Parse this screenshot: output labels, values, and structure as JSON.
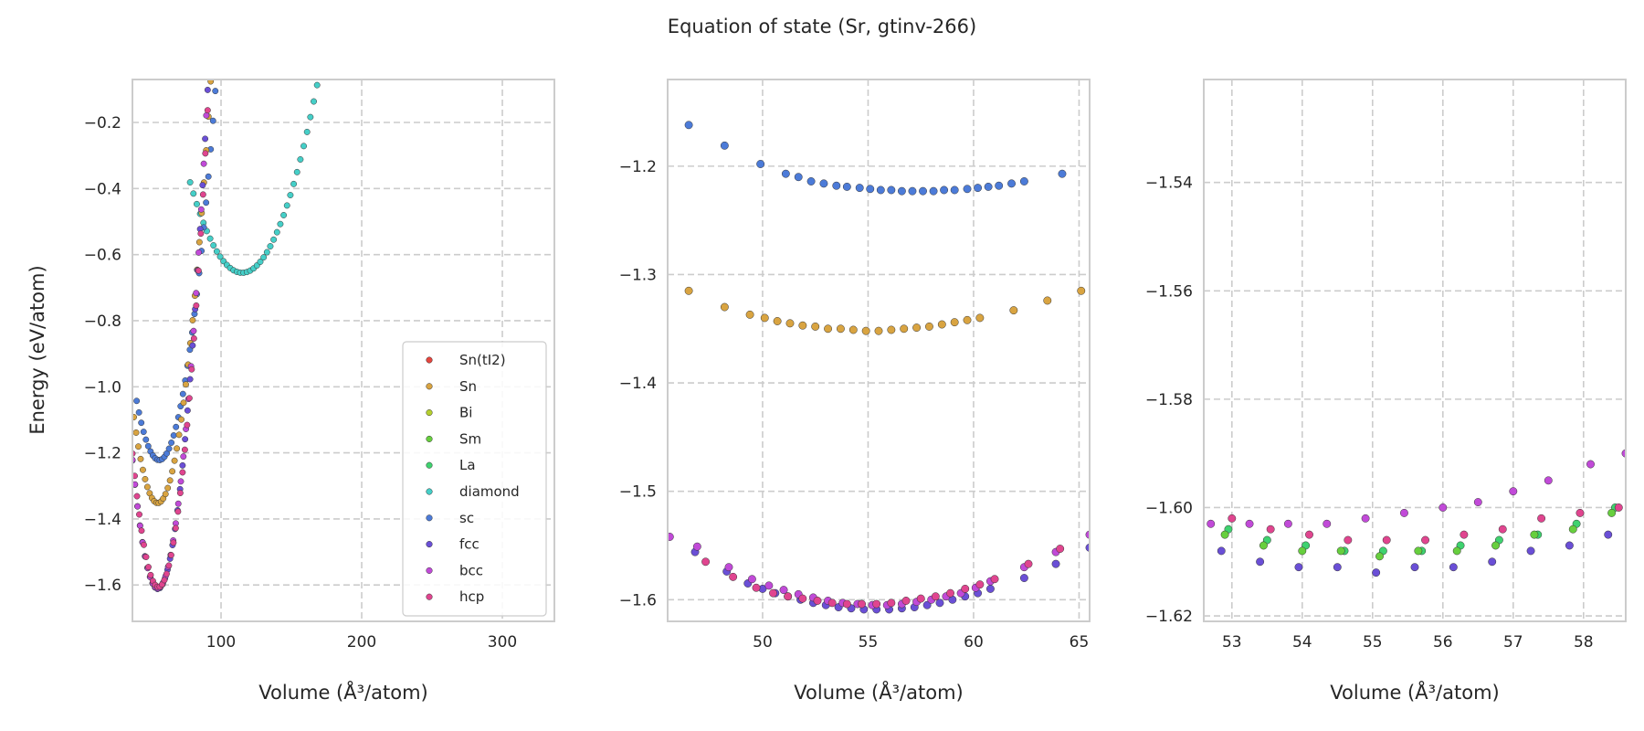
{
  "figure": {
    "title": "Equation of state (Sr, gtinv-266)",
    "ylabel": "Energy (eV/atom)"
  },
  "legend": {
    "placement": "lower-right of first panel",
    "entries": [
      {
        "name": "Sn(tI2)",
        "color": "#e5463f"
      },
      {
        "name": "Sn",
        "color": "#d9a441"
      },
      {
        "name": "Bi",
        "color": "#b5cf2e"
      },
      {
        "name": "Sm",
        "color": "#67cf3e"
      },
      {
        "name": "La",
        "color": "#3fd26f"
      },
      {
        "name": "diamond",
        "color": "#45cfc8"
      },
      {
        "name": "sc",
        "color": "#4c7bd8"
      },
      {
        "name": "fcc",
        "color": "#6a4fd6"
      },
      {
        "name": "bcc",
        "color": "#c14ad8"
      },
      {
        "name": "hcp",
        "color": "#e0458f"
      }
    ]
  },
  "chart_data": [
    {
      "type": "scatter",
      "xlabel": "Volume (Å³/atom)",
      "ylabel": "Energy (eV/atom)",
      "xlim": [
        37,
        337
      ],
      "ylim": [
        -1.71,
        -0.07
      ],
      "xticks": [
        100,
        200,
        300
      ],
      "yticks": [
        -1.6,
        -1.4,
        -1.2,
        -1.0,
        -0.8,
        -0.6,
        -0.4,
        -0.2
      ],
      "xtick_labels": [
        "100",
        "200",
        "300"
      ],
      "ytick_labels": [
        "−1.6",
        "−1.4",
        "−1.2",
        "−1.0",
        "−0.8",
        "−0.6",
        "−0.4",
        "−0.2"
      ],
      "grid": true,
      "series": [
        {
          "name": "diamond",
          "color": "#45cfc8",
          "eos": {
            "E0": -0.655,
            "V0": 115,
            "B": 0.0002,
            "vmin": 78,
            "vmax": 337,
            "n": 110
          }
        },
        {
          "name": "sc",
          "color": "#4c7bd8",
          "eos": {
            "E0": -1.222,
            "V0": 56,
            "B": 0.0007,
            "vmin": 40,
            "vmax": 170,
            "n": 80
          }
        },
        {
          "name": "Sn",
          "color": "#d9a441",
          "eos": {
            "E0": -1.352,
            "V0": 55,
            "B": 0.0009,
            "vmin": 38,
            "vmax": 165,
            "n": 80
          }
        },
        {
          "name": "fcc",
          "color": "#6a4fd6",
          "eos": {
            "E0": -1.612,
            "V0": 55,
            "B": 0.0012,
            "vmin": 37,
            "vmax": 160,
            "n": 70
          }
        },
        {
          "name": "bcc",
          "color": "#c14ad8",
          "eos": {
            "E0": -1.61,
            "V0": 55,
            "B": 0.0012,
            "vmin": 37,
            "vmax": 162,
            "n": 70
          }
        },
        {
          "name": "hcp",
          "color": "#e0458f",
          "eos": {
            "E0": -1.606,
            "V0": 55.5,
            "B": 0.00118,
            "vmin": 37,
            "vmax": 165,
            "n": 80
          }
        }
      ]
    },
    {
      "type": "scatter",
      "xlabel": "Volume (Å³/atom)",
      "ylabel": "",
      "xlim": [
        45.5,
        65.5
      ],
      "ylim": [
        -1.62,
        -1.12
      ],
      "xticks": [
        50,
        55,
        60,
        65
      ],
      "yticks": [
        -1.6,
        -1.5,
        -1.4,
        -1.3,
        -1.2
      ],
      "xtick_labels": [
        "50",
        "55",
        "60",
        "65"
      ],
      "ytick_labels": [
        "−1.6",
        "−1.5",
        "−1.4",
        "−1.3",
        "−1.2"
      ],
      "grid": true,
      "series": [
        {
          "name": "sc",
          "color": "#4c7bd8",
          "points": [
            [
              46.5,
              -1.162
            ],
            [
              48.2,
              -1.181
            ],
            [
              49.9,
              -1.198
            ],
            [
              51.1,
              -1.207
            ],
            [
              51.7,
              -1.21
            ],
            [
              52.3,
              -1.214
            ],
            [
              52.9,
              -1.216
            ],
            [
              53.5,
              -1.218
            ],
            [
              54.0,
              -1.219
            ],
            [
              54.6,
              -1.22
            ],
            [
              55.1,
              -1.221
            ],
            [
              55.6,
              -1.222
            ],
            [
              56.1,
              -1.222
            ],
            [
              56.6,
              -1.223
            ],
            [
              57.1,
              -1.223
            ],
            [
              57.6,
              -1.223
            ],
            [
              58.1,
              -1.223
            ],
            [
              58.6,
              -1.222
            ],
            [
              59.1,
              -1.222
            ],
            [
              59.7,
              -1.221
            ],
            [
              60.2,
              -1.22
            ],
            [
              60.7,
              -1.219
            ],
            [
              61.2,
              -1.218
            ],
            [
              61.8,
              -1.216
            ],
            [
              62.4,
              -1.214
            ],
            [
              64.2,
              -1.207
            ]
          ]
        },
        {
          "name": "Sn",
          "color": "#d9a441",
          "points": [
            [
              46.5,
              -1.315
            ],
            [
              48.2,
              -1.33
            ],
            [
              49.4,
              -1.337
            ],
            [
              50.1,
              -1.34
            ],
            [
              50.7,
              -1.343
            ],
            [
              51.3,
              -1.345
            ],
            [
              51.9,
              -1.347
            ],
            [
              52.5,
              -1.348
            ],
            [
              53.1,
              -1.35
            ],
            [
              53.7,
              -1.35
            ],
            [
              54.3,
              -1.351
            ],
            [
              54.9,
              -1.352
            ],
            [
              55.5,
              -1.352
            ],
            [
              56.1,
              -1.351
            ],
            [
              56.7,
              -1.35
            ],
            [
              57.3,
              -1.349
            ],
            [
              57.9,
              -1.348
            ],
            [
              58.5,
              -1.346
            ],
            [
              59.1,
              -1.344
            ],
            [
              59.7,
              -1.342
            ],
            [
              60.3,
              -1.34
            ],
            [
              61.9,
              -1.333
            ],
            [
              63.5,
              -1.324
            ],
            [
              65.1,
              -1.315
            ]
          ]
        },
        {
          "name": "fcc",
          "color": "#6a4fd6",
          "points": [
            [
              46.8,
              -1.556
            ],
            [
              48.3,
              -1.574
            ],
            [
              49.3,
              -1.585
            ],
            [
              50.0,
              -1.59
            ],
            [
              50.6,
              -1.594
            ],
            [
              51.2,
              -1.597
            ],
            [
              51.8,
              -1.6
            ],
            [
              52.4,
              -1.603
            ],
            [
              53.0,
              -1.605
            ],
            [
              53.6,
              -1.607
            ],
            [
              54.2,
              -1.608
            ],
            [
              54.8,
              -1.609
            ],
            [
              55.4,
              -1.609
            ],
            [
              56.0,
              -1.609
            ],
            [
              56.6,
              -1.608
            ],
            [
              57.2,
              -1.607
            ],
            [
              57.8,
              -1.605
            ],
            [
              58.4,
              -1.603
            ],
            [
              59.0,
              -1.6
            ],
            [
              59.6,
              -1.597
            ],
            [
              60.2,
              -1.594
            ],
            [
              60.8,
              -1.59
            ],
            [
              62.4,
              -1.58
            ],
            [
              63.9,
              -1.567
            ],
            [
              65.5,
              -1.552
            ]
          ]
        },
        {
          "name": "bcc",
          "color": "#c14ad8",
          "points": [
            [
              45.6,
              -1.542
            ],
            [
              46.9,
              -1.551
            ],
            [
              48.4,
              -1.57
            ],
            [
              49.5,
              -1.581
            ],
            [
              50.3,
              -1.587
            ],
            [
              51.0,
              -1.591
            ],
            [
              51.7,
              -1.595
            ],
            [
              52.4,
              -1.598
            ],
            [
              53.1,
              -1.601
            ],
            [
              53.8,
              -1.603
            ],
            [
              54.5,
              -1.604
            ],
            [
              55.2,
              -1.605
            ],
            [
              55.9,
              -1.605
            ],
            [
              56.6,
              -1.604
            ],
            [
              57.3,
              -1.602
            ],
            [
              58.0,
              -1.6
            ],
            [
              58.7,
              -1.597
            ],
            [
              59.4,
              -1.594
            ],
            [
              60.1,
              -1.589
            ],
            [
              60.8,
              -1.583
            ],
            [
              62.4,
              -1.57
            ],
            [
              63.9,
              -1.556
            ],
            [
              65.5,
              -1.54
            ]
          ]
        },
        {
          "name": "hcp",
          "color": "#e0458f",
          "points": [
            [
              47.3,
              -1.565
            ],
            [
              48.6,
              -1.579
            ],
            [
              49.7,
              -1.589
            ],
            [
              50.5,
              -1.594
            ],
            [
              51.2,
              -1.597
            ],
            [
              51.9,
              -1.599
            ],
            [
              52.6,
              -1.601
            ],
            [
              53.3,
              -1.603
            ],
            [
              54.0,
              -1.604
            ],
            [
              54.7,
              -1.604
            ],
            [
              55.4,
              -1.604
            ],
            [
              56.1,
              -1.603
            ],
            [
              56.8,
              -1.601
            ],
            [
              57.5,
              -1.599
            ],
            [
              58.2,
              -1.597
            ],
            [
              58.9,
              -1.594
            ],
            [
              59.6,
              -1.59
            ],
            [
              60.3,
              -1.586
            ],
            [
              61.0,
              -1.581
            ],
            [
              62.6,
              -1.567
            ],
            [
              64.1,
              -1.553
            ]
          ]
        }
      ]
    },
    {
      "type": "scatter",
      "xlabel": "Volume (Å³/atom)",
      "ylabel": "",
      "xlim": [
        52.6,
        58.6
      ],
      "ylim": [
        -1.621,
        -1.521
      ],
      "xticks": [
        53,
        54,
        55,
        56,
        57,
        58
      ],
      "yticks": [
        -1.62,
        -1.6,
        -1.58,
        -1.56,
        -1.54
      ],
      "xtick_labels": [
        "53",
        "54",
        "55",
        "56",
        "57",
        "58"
      ],
      "ytick_labels": [
        "−1.62",
        "−1.60",
        "−1.58",
        "−1.56",
        "−1.54"
      ],
      "grid": true,
      "series": [
        {
          "name": "fcc",
          "color": "#6a4fd6",
          "points": [
            [
              52.85,
              -1.608
            ],
            [
              53.4,
              -1.61
            ],
            [
              53.95,
              -1.611
            ],
            [
              54.5,
              -1.611
            ],
            [
              55.05,
              -1.612
            ],
            [
              55.6,
              -1.611
            ],
            [
              56.15,
              -1.611
            ],
            [
              56.7,
              -1.61
            ],
            [
              57.25,
              -1.608
            ],
            [
              57.8,
              -1.607
            ],
            [
              58.35,
              -1.605
            ]
          ]
        },
        {
          "name": "La",
          "color": "#3fd26f",
          "points": [
            [
              52.95,
              -1.604
            ],
            [
              53.5,
              -1.606
            ],
            [
              54.05,
              -1.607
            ],
            [
              54.6,
              -1.608
            ],
            [
              55.15,
              -1.608
            ],
            [
              55.7,
              -1.608
            ],
            [
              56.25,
              -1.607
            ],
            [
              56.8,
              -1.606
            ],
            [
              57.35,
              -1.605
            ],
            [
              57.9,
              -1.603
            ],
            [
              58.45,
              -1.6
            ]
          ]
        },
        {
          "name": "Sm",
          "color": "#67cf3e",
          "points": [
            [
              52.9,
              -1.605
            ],
            [
              53.45,
              -1.607
            ],
            [
              54.0,
              -1.608
            ],
            [
              54.55,
              -1.608
            ],
            [
              55.1,
              -1.609
            ],
            [
              55.65,
              -1.608
            ],
            [
              56.2,
              -1.608
            ],
            [
              56.75,
              -1.607
            ],
            [
              57.3,
              -1.605
            ],
            [
              57.85,
              -1.604
            ],
            [
              58.4,
              -1.601
            ]
          ]
        },
        {
          "name": "bcc",
          "color": "#c14ad8",
          "points": [
            [
              52.7,
              -1.603
            ],
            [
              53.25,
              -1.603
            ],
            [
              53.8,
              -1.603
            ],
            [
              54.35,
              -1.603
            ],
            [
              54.9,
              -1.602
            ],
            [
              55.45,
              -1.601
            ],
            [
              56.0,
              -1.6
            ],
            [
              56.5,
              -1.599
            ],
            [
              57.0,
              -1.597
            ],
            [
              57.5,
              -1.595
            ],
            [
              58.1,
              -1.592
            ],
            [
              58.6,
              -1.59
            ]
          ]
        },
        {
          "name": "hcp",
          "color": "#e0458f",
          "points": [
            [
              53.0,
              -1.602
            ],
            [
              53.55,
              -1.604
            ],
            [
              54.1,
              -1.605
            ],
            [
              54.65,
              -1.606
            ],
            [
              55.2,
              -1.606
            ],
            [
              55.75,
              -1.606
            ],
            [
              56.3,
              -1.605
            ],
            [
              56.85,
              -1.604
            ],
            [
              57.4,
              -1.602
            ],
            [
              57.95,
              -1.601
            ],
            [
              58.5,
              -1.6
            ]
          ]
        }
      ]
    }
  ]
}
